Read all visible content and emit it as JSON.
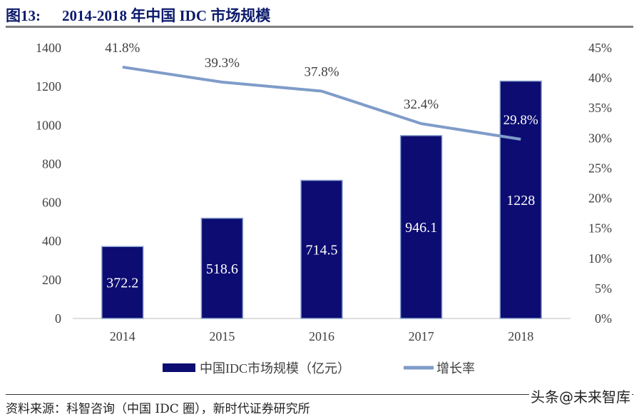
{
  "title": {
    "label": "图13:",
    "text": "2014-2018 年中国 IDC 市场规模"
  },
  "source": "资料来源：科智咨询（中国 IDC 圈），新时代证券研究所",
  "watermark": "头条@未来智库",
  "chart_data": {
    "type": "bar+line",
    "categories": [
      "2014",
      "2015",
      "2016",
      "2017",
      "2018"
    ],
    "series": [
      {
        "name": "中国IDC市场规模（亿元）",
        "type": "bar",
        "axis": "left",
        "values": [
          372.2,
          518.6,
          714.5,
          946.1,
          1228
        ],
        "labels": [
          "372.2",
          "518.6",
          "714.5",
          "946.1",
          "1228"
        ],
        "color": "#0c0c72"
      },
      {
        "name": "增长率",
        "type": "line",
        "axis": "right",
        "values": [
          41.8,
          39.3,
          37.8,
          32.4,
          29.8
        ],
        "labels": [
          "41.8%",
          "39.3%",
          "37.8%",
          "32.4%",
          "29.8%"
        ],
        "color": "#7f9cc9"
      }
    ],
    "y_left": {
      "range": [
        0,
        1400
      ],
      "ticks": [
        "0",
        "200",
        "400",
        "600",
        "800",
        "1000",
        "1200",
        "1400"
      ]
    },
    "y_right": {
      "range": [
        0,
        45
      ],
      "ticks": [
        "0%",
        "5%",
        "10%",
        "15%",
        "20%",
        "25%",
        "30%",
        "35%",
        "40%",
        "45%"
      ]
    },
    "grid": false,
    "legend": "bottom"
  }
}
